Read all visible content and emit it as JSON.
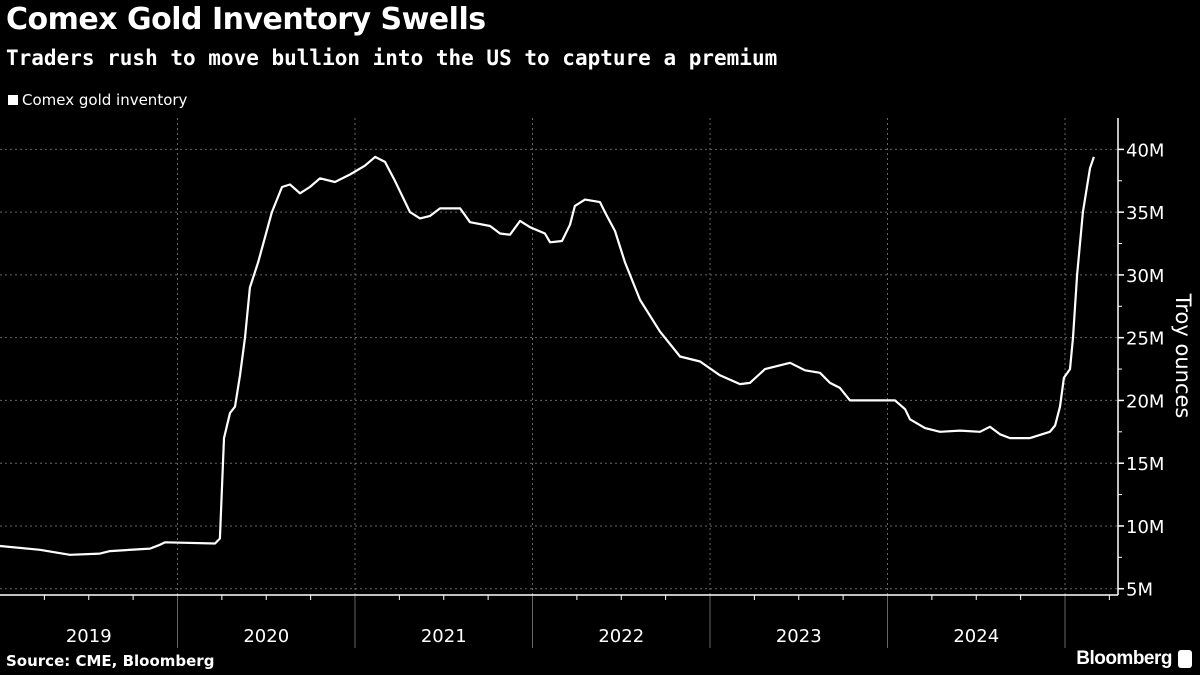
{
  "chart_data": {
    "type": "line",
    "title": "Comex Gold Inventory Swells",
    "subtitle": "Traders rush to move bullion into the US to capture a premium",
    "legend": [
      "Comex gold inventory"
    ],
    "legend_position": "top-left",
    "ylabel": "Troy ounces",
    "xlabel": "",
    "y_ticks": [
      5,
      10,
      15,
      20,
      25,
      30,
      35,
      40
    ],
    "y_tick_labels": [
      "5M",
      "10M",
      "15M",
      "20M",
      "25M",
      "30M",
      "35M",
      "40M"
    ],
    "ylim": [
      4.5,
      42.5
    ],
    "xlim": [
      2019.0,
      2025.3
    ],
    "x_tick_labels": [
      "2019",
      "2020",
      "2021",
      "2022",
      "2023",
      "2024"
    ],
    "grid": true,
    "y_axis_side": "right",
    "units": "million troy ounces",
    "series": [
      {
        "name": "Comex gold inventory",
        "color": "#ffffff",
        "points": [
          [
            2019.0,
            8.4
          ],
          [
            2019.225,
            8.1
          ],
          [
            2019.394,
            7.7
          ],
          [
            2019.563,
            7.8
          ],
          [
            2019.62,
            8.0
          ],
          [
            2019.845,
            8.2
          ],
          [
            2019.901,
            8.5
          ],
          [
            2019.93,
            8.7
          ],
          [
            2020.211,
            8.6
          ],
          [
            2020.239,
            9.0
          ],
          [
            2020.262,
            17.0
          ],
          [
            2020.296,
            19.0
          ],
          [
            2020.324,
            19.5
          ],
          [
            2020.352,
            22.0
          ],
          [
            2020.38,
            25.0
          ],
          [
            2020.408,
            29.0
          ],
          [
            2020.454,
            31.0
          ],
          [
            2020.493,
            33.0
          ],
          [
            2020.532,
            35.0
          ],
          [
            2020.589,
            37.0
          ],
          [
            2020.634,
            37.2
          ],
          [
            2020.69,
            36.5
          ],
          [
            2020.746,
            37.0
          ],
          [
            2020.803,
            37.7
          ],
          [
            2020.887,
            37.4
          ],
          [
            2020.972,
            38.0
          ],
          [
            2021.056,
            38.7
          ],
          [
            2021.113,
            39.4
          ],
          [
            2021.169,
            39.0
          ],
          [
            2021.225,
            37.5
          ],
          [
            2021.31,
            35.0
          ],
          [
            2021.366,
            34.5
          ],
          [
            2021.423,
            34.7
          ],
          [
            2021.479,
            35.3
          ],
          [
            2021.592,
            35.3
          ],
          [
            2021.648,
            34.2
          ],
          [
            2021.761,
            33.9
          ],
          [
            2021.817,
            33.3
          ],
          [
            2021.873,
            33.2
          ],
          [
            2021.93,
            34.3
          ],
          [
            2021.986,
            33.8
          ],
          [
            2022.07,
            33.3
          ],
          [
            2022.099,
            32.6
          ],
          [
            2022.166,
            32.7
          ],
          [
            2022.211,
            34.0
          ],
          [
            2022.239,
            35.5
          ],
          [
            2022.296,
            36.0
          ],
          [
            2022.38,
            35.8
          ],
          [
            2022.408,
            35.0
          ],
          [
            2022.465,
            33.5
          ],
          [
            2022.521,
            31.0
          ],
          [
            2022.606,
            28.0
          ],
          [
            2022.718,
            25.5
          ],
          [
            2022.831,
            23.5
          ],
          [
            2022.944,
            23.1
          ],
          [
            2023.056,
            22.0
          ],
          [
            2023.169,
            21.3
          ],
          [
            2023.225,
            21.4
          ],
          [
            2023.31,
            22.5
          ],
          [
            2023.451,
            23.0
          ],
          [
            2023.535,
            22.4
          ],
          [
            2023.62,
            22.2
          ],
          [
            2023.676,
            21.4
          ],
          [
            2023.732,
            21.0
          ],
          [
            2023.789,
            20.0
          ],
          [
            2023.901,
            20.0
          ],
          [
            2024.042,
            20.0
          ],
          [
            2024.099,
            19.3
          ],
          [
            2024.127,
            18.5
          ],
          [
            2024.211,
            17.8
          ],
          [
            2024.296,
            17.5
          ],
          [
            2024.408,
            17.6
          ],
          [
            2024.521,
            17.5
          ],
          [
            2024.577,
            17.9
          ],
          [
            2024.634,
            17.3
          ],
          [
            2024.69,
            17.0
          ],
          [
            2024.803,
            17.0
          ],
          [
            2024.915,
            17.5
          ],
          [
            2024.944,
            18.0
          ],
          [
            2024.972,
            19.5
          ],
          [
            2024.994,
            21.8
          ],
          [
            2025.028,
            22.5
          ],
          [
            2025.045,
            25.0
          ],
          [
            2025.068,
            30.0
          ],
          [
            2025.101,
            35.0
          ],
          [
            2025.141,
            38.5
          ],
          [
            2025.163,
            39.4
          ]
        ]
      }
    ],
    "source": "Source: CME, Bloomberg"
  },
  "branding": {
    "logo": "Bloomberg"
  }
}
